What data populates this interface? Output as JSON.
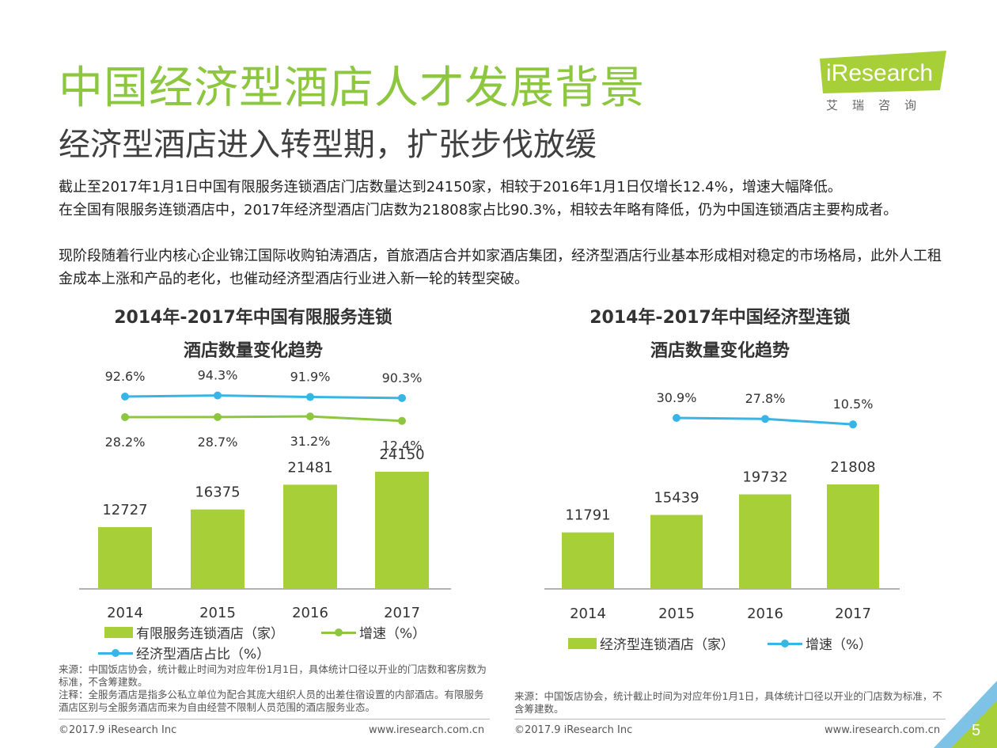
{
  "header": {
    "title": "中国经济型酒店人才发展背景",
    "subtitle": "经济型酒店进入转型期，扩张步伐放缓"
  },
  "logo": {
    "brand": "iResearch",
    "cn": "艾瑞咨询"
  },
  "body": {
    "p1": "截止至2017年1月1日中国有限服务连锁酒店门店数量达到24150家，相较于2016年1月1日仅增长12.4%，增速大幅降低。",
    "p2": "在全国有限服务连锁酒店中，2017年经济型酒店门店数为21808家占比90.3%，相较去年略有降低，仍为中国连锁酒店主要构成者。",
    "p3": "现阶段随着行业内核心企业锦江国际收购铂涛酒店，首旅酒店合并如家酒店集团，经济型酒店行业基本形成相对稳定的市场格局，此外人工租金成本上涨和产品的老化，也催动经济型酒店行业进入新一轮的转型突破。"
  },
  "chart_data": [
    {
      "type": "bar",
      "title_line1": "2014年-2017年中国有限服务连锁",
      "title_line2": "酒店数量变化趋势",
      "categories": [
        "2014",
        "2015",
        "2016",
        "2017"
      ],
      "series": [
        {
          "name": "有限服务连锁酒店（家）",
          "type": "bar",
          "values": [
            12727,
            16375,
            21481,
            24150
          ],
          "labels": [
            "12727",
            "16375",
            "21481",
            "24150"
          ]
        },
        {
          "name": "增速（%）",
          "type": "line",
          "values": [
            28.2,
            28.7,
            31.2,
            12.4
          ],
          "labels": [
            "28.2%",
            "28.7%",
            "31.2%",
            "12.4%"
          ]
        },
        {
          "name": "经济型酒店占比（%）",
          "type": "line",
          "values": [
            92.6,
            94.3,
            91.9,
            90.3
          ],
          "labels": [
            "92.6%",
            "94.3%",
            "91.9%",
            "90.3%"
          ]
        }
      ],
      "colors": {
        "bar": "#a6cf38",
        "growth": "#8dc63f",
        "share": "#36b5e6"
      },
      "legend": "bottom",
      "grid": false
    },
    {
      "type": "bar",
      "title_line1": "2014年-2017年中国经济型连锁",
      "title_line2": "酒店数量变化趋势",
      "categories": [
        "2014",
        "2015",
        "2016",
        "2017"
      ],
      "series": [
        {
          "name": "经济型连锁酒店（家）",
          "type": "bar",
          "values": [
            11791,
            15439,
            19732,
            21808
          ],
          "labels": [
            "11791",
            "15439",
            "19732",
            "21808"
          ]
        },
        {
          "name": "增速（%）",
          "type": "line",
          "values": [
            null,
            30.9,
            27.8,
            10.5
          ],
          "labels": [
            "",
            "30.9%",
            "27.8%",
            "10.5%"
          ]
        }
      ],
      "colors": {
        "bar": "#a6cf38",
        "growth": "#36b5e6"
      },
      "legend": "bottom",
      "grid": false
    }
  ],
  "notes": {
    "left_source": "来源：中国饭店协会，统计截止时间为对应年份1月1日，具体统计口径以开业的门店数和客房数为标准，不含筹建数。",
    "left_note": "注释：全服务酒店是指多公私立单位为配合其庞大组织人员的出差住宿设置的内部酒店。有限服务酒店区别与全服务酒店而来为自由经营不限制人员范围的酒店服务业态。",
    "right_source": "来源：中国饭店协会，统计截止时间为对应年份1月1日，具体统计口径以开业的门店数为标准，不含筹建数。"
  },
  "footer": {
    "copyright": "©2017.9 iResearch Inc",
    "url": "www.iresearch.com.cn",
    "page": "5"
  }
}
